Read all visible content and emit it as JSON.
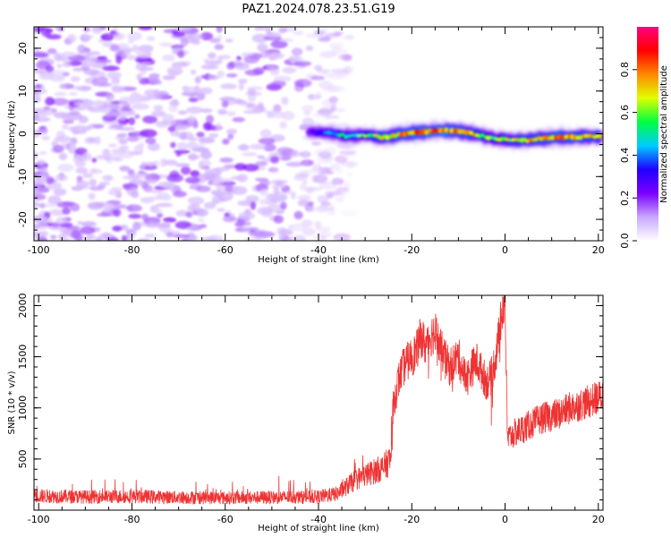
{
  "chart_data": [
    {
      "type": "heatmap",
      "title": "PAZ1.2024.078.23.51.G19",
      "xlabel": "Height of straight line (km)",
      "ylabel": "Frequency (Hz)",
      "xlim": [
        -101,
        21
      ],
      "ylim": [
        -25,
        25
      ],
      "xticks": [
        -100,
        -80,
        -60,
        -40,
        -20,
        0,
        20
      ],
      "yticks": [
        -20,
        -10,
        0,
        10,
        20
      ],
      "colorbar": {
        "label": "Normalized spectral amplitude",
        "range": [
          0,
          1
        ],
        "ticks": [
          0.0,
          0.2,
          0.4,
          0.6,
          0.8
        ],
        "colors": [
          "#ffffff",
          "#c9a6ff",
          "#7a00ff",
          "#2000ff",
          "#00ccff",
          "#00ff40",
          "#e0ff00",
          "#ff8800",
          "#ff0000",
          "#ff0080"
        ]
      },
      "signal_track": {
        "x": [
          -42,
          -38,
          -34,
          -30,
          -26,
          -22,
          -18,
          -14,
          -10,
          -6,
          -2,
          2,
          6,
          10,
          14,
          18,
          21
        ],
        "y": [
          0.5,
          0.2,
          -0.5,
          -0.3,
          -0.8,
          0.0,
          0.4,
          0.8,
          0.6,
          -0.2,
          -1.2,
          -1.6,
          -1.4,
          -0.9,
          -0.8,
          -0.7,
          -0.6
        ],
        "amplitude": [
          0.25,
          0.45,
          0.55,
          0.6,
          0.75,
          0.8,
          0.85,
          0.9,
          0.85,
          0.7,
          0.6,
          0.7,
          0.75,
          0.8,
          0.8,
          0.75,
          0.7
        ]
      },
      "noise_region_x": [
        -101,
        -33
      ],
      "grid": false
    },
    {
      "type": "line",
      "xlabel": "Height of straight line (km)",
      "ylabel": "SNR (10 * v/v)",
      "xlim": [
        -101,
        21
      ],
      "ylim": [
        0,
        2100
      ],
      "xticks": [
        -100,
        -80,
        -60,
        -40,
        -20,
        0,
        20
      ],
      "yticks": [
        500,
        1000,
        1500,
        2000
      ],
      "color": "#ee3333",
      "envelope": {
        "x": [
          -101,
          -90,
          -80,
          -70,
          -60,
          -50,
          -40,
          -36,
          -34,
          -32,
          -30,
          -28,
          -26,
          -24.5,
          -24,
          -23,
          -22,
          -21,
          -20,
          -19,
          -18,
          -17,
          -16,
          -15,
          -14,
          -13,
          -12,
          -11,
          -10,
          -9,
          -8,
          -7,
          -6,
          -5,
          -4,
          -3,
          -2,
          -1,
          -0.5,
          0,
          0.5,
          2,
          4,
          6,
          8,
          10,
          12,
          14,
          16,
          18,
          20,
          21
        ],
        "y": [
          140,
          130,
          135,
          125,
          120,
          125,
          130,
          160,
          230,
          300,
          340,
          380,
          420,
          500,
          1000,
          1250,
          1380,
          1450,
          1500,
          1550,
          1700,
          1600,
          1700,
          1750,
          1600,
          1500,
          1400,
          1450,
          1500,
          1350,
          1300,
          1400,
          1450,
          1350,
          1250,
          1300,
          1500,
          1800,
          2000,
          2050,
          700,
          750,
          800,
          850,
          900,
          920,
          950,
          1000,
          1030,
          1060,
          1100,
          1120
        ]
      },
      "noise_amplitude": [
        60,
        180
      ],
      "grid": false
    }
  ]
}
